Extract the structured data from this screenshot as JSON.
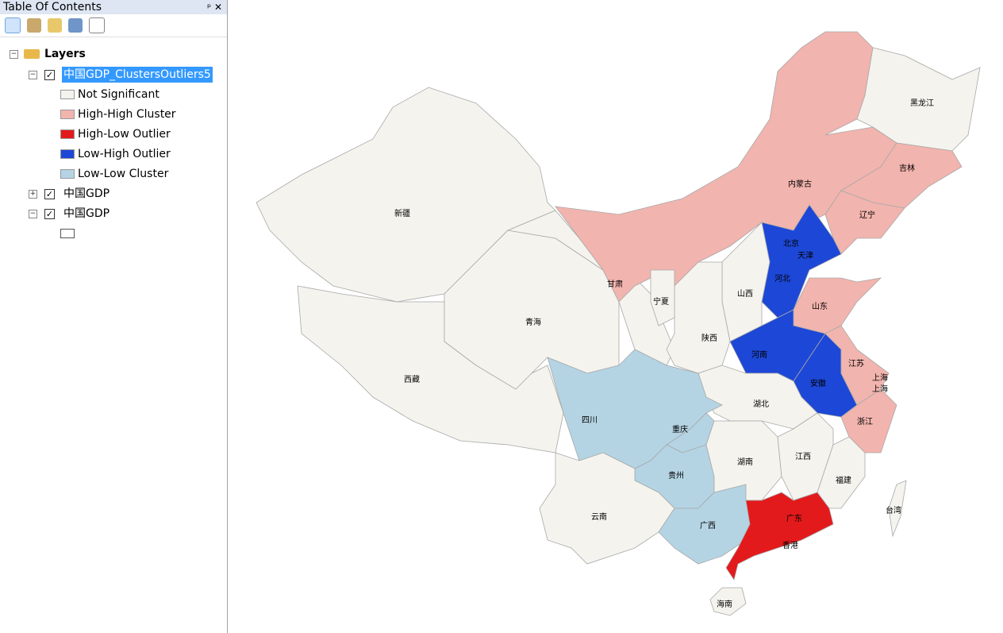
{
  "toc": {
    "title": "Table Of Contents",
    "root": "Layers",
    "layers": [
      {
        "name": "中国GDP_ClustersOutliers5",
        "legend": [
          "Not Significant",
          "High-High Cluster",
          "High-Low Outlier",
          "Low-High Outlier",
          "Low-Low Cluster"
        ]
      },
      {
        "name": "中国GDP"
      },
      {
        "name": "中国GDP"
      }
    ]
  },
  "map": {
    "labels": [
      "黑龙江",
      "吉林",
      "内蒙古",
      "辽宁",
      "新疆",
      "北京",
      "天津",
      "河北",
      "山西",
      "山东",
      "甘肃",
      "宁夏",
      "青海",
      "陕西",
      "河南",
      "江苏",
      "上海",
      "上海",
      "西藏",
      "安徽",
      "湖北",
      "四川",
      "重庆",
      "浙江",
      "湖南",
      "江西",
      "贵州",
      "福建",
      "台湾",
      "云南",
      "广东",
      "广西",
      "香港",
      "海南"
    ]
  }
}
